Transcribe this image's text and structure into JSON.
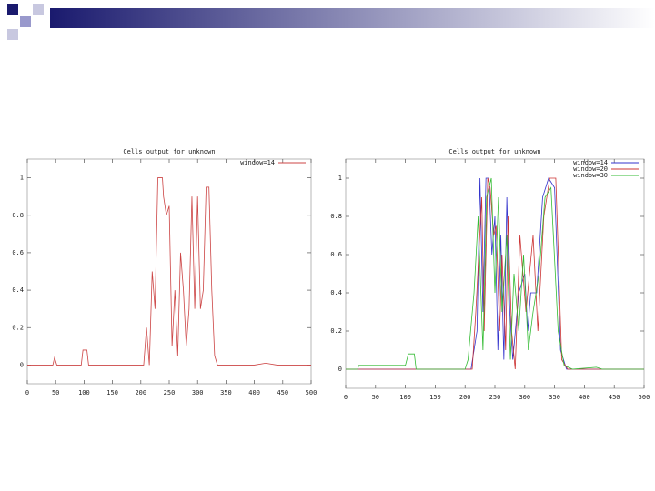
{
  "chart_data": [
    {
      "type": "line",
      "title": "Cells output for unknown",
      "series": [
        {
          "name": "window=14",
          "color": "#cc4444",
          "x": [
            0,
            45,
            48,
            52,
            95,
            98,
            105,
            108,
            205,
            210,
            215,
            220,
            225,
            230,
            238,
            240,
            245,
            250,
            255,
            260,
            265,
            270,
            275,
            280,
            285,
            290,
            295,
            300,
            305,
            310,
            315,
            320,
            325,
            330,
            335,
            400,
            420,
            440,
            500
          ],
          "values": [
            0,
            0,
            0.04,
            0,
            0,
            0.08,
            0.08,
            0,
            0,
            0.2,
            0,
            0.5,
            0.3,
            1,
            1,
            0.9,
            0.8,
            0.85,
            0.1,
            0.4,
            0.05,
            0.6,
            0.4,
            0.1,
            0.3,
            0.9,
            0.3,
            0.9,
            0.3,
            0.4,
            0.95,
            0.95,
            0.4,
            0.05,
            0,
            0,
            0.01,
            0,
            0
          ]
        }
      ],
      "xlim": [
        0,
        500
      ],
      "xticks": [
        0,
        50,
        100,
        150,
        200,
        250,
        300,
        350,
        400,
        450,
        500
      ],
      "ylim": [
        -0.1,
        1.1
      ],
      "yticks": [
        0,
        0.2,
        0.4,
        0.6,
        0.8,
        1
      ],
      "legend": "upper right"
    },
    {
      "type": "line",
      "title": "Cells output for unknown",
      "series": [
        {
          "name": "window=14",
          "color": "#3333cc",
          "x": [
            0,
            210,
            220,
            225,
            230,
            235,
            240,
            245,
            250,
            255,
            260,
            265,
            270,
            275,
            280,
            290,
            300,
            305,
            310,
            320,
            330,
            340,
            350,
            360,
            370,
            500
          ],
          "values": [
            0,
            0,
            0.2,
            1,
            0.3,
            1,
            1,
            0.6,
            0.8,
            0.1,
            0.7,
            0.05,
            0.9,
            0.3,
            0.05,
            0.4,
            0.5,
            0.2,
            0.4,
            0.4,
            0.9,
            1,
            0.95,
            0.1,
            0,
            0
          ]
        },
        {
          "name": "window=20",
          "color": "#cc3333",
          "x": [
            0,
            212,
            218,
            228,
            232,
            238,
            242,
            248,
            252,
            258,
            262,
            268,
            272,
            278,
            284,
            292,
            302,
            308,
            314,
            322,
            332,
            342,
            352,
            362,
            372,
            500
          ],
          "values": [
            0,
            0,
            0.3,
            0.9,
            0.2,
            1,
            0.95,
            0.7,
            0.75,
            0.2,
            0.6,
            0.1,
            0.8,
            0.2,
            0,
            0.7,
            0.3,
            0.5,
            0.7,
            0.2,
            0.8,
            1,
            1,
            0.05,
            0,
            0
          ]
        },
        {
          "name": "window=30",
          "color": "#33bb33",
          "x": [
            0,
            20,
            22,
            100,
            105,
            115,
            118,
            200,
            205,
            215,
            222,
            230,
            236,
            244,
            250,
            256,
            262,
            270,
            276,
            282,
            290,
            298,
            306,
            314,
            324,
            334,
            344,
            356,
            366,
            380,
            420,
            430,
            500
          ],
          "values": [
            0,
            0,
            0.02,
            0.02,
            0.08,
            0.08,
            0,
            0,
            0.05,
            0.4,
            0.8,
            0.1,
            0.9,
            1,
            0.4,
            0.9,
            0.3,
            0.7,
            0.05,
            0.5,
            0.2,
            0.6,
            0.1,
            0.3,
            0.5,
            0.9,
            0.95,
            0.2,
            0.02,
            0,
            0.01,
            0,
            0
          ]
        }
      ],
      "xlim": [
        0,
        500
      ],
      "xticks": [
        0,
        50,
        100,
        150,
        200,
        250,
        300,
        350,
        400,
        450,
        500
      ],
      "ylim": [
        -0.1,
        1.1
      ],
      "yticks": [
        0,
        0.2,
        0.4,
        0.6,
        0.8,
        1
      ],
      "legend": "upper right"
    }
  ]
}
